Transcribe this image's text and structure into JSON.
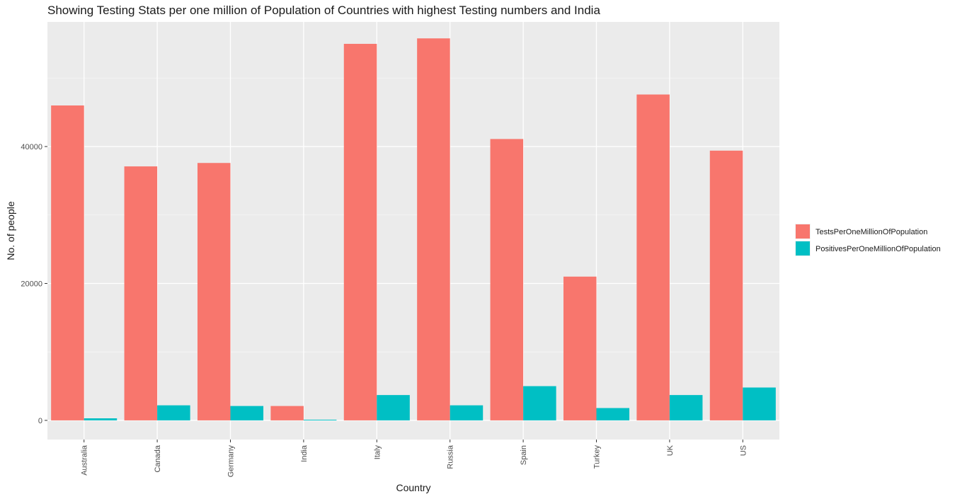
{
  "chart_data": {
    "type": "bar",
    "title": "Showing Testing Stats per one million of Population of Countries with highest Testing numbers and India",
    "xlabel": "Country",
    "ylabel": "No. of people",
    "categories": [
      "Australia",
      "Canada",
      "Germany",
      "India",
      "Italy",
      "Russia",
      "Spain",
      "Turkey",
      "UK",
      "US"
    ],
    "series": [
      {
        "name": "TestsPerOneMillionOfPopulation",
        "color": "#F8766D",
        "values": [
          46000,
          37100,
          37600,
          2100,
          55000,
          55800,
          41100,
          21000,
          47600,
          39400
        ]
      },
      {
        "name": "PositivesPerOneMillionOfPopulation",
        "color": "#00BFC4",
        "values": [
          300,
          2200,
          2100,
          100,
          3700,
          2200,
          5000,
          1800,
          3700,
          4800
        ]
      }
    ],
    "ylim": [
      -2800,
      58200
    ],
    "yticks": [
      0,
      20000,
      40000
    ],
    "grid": true,
    "legend": "right"
  }
}
